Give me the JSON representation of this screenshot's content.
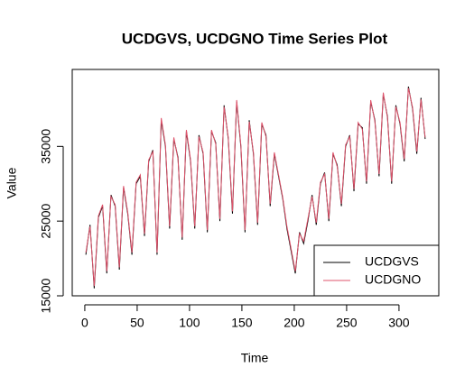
{
  "chart_data": {
    "type": "line",
    "title": "UCDGVS, UCDGNO Time Series Plot",
    "x_label": "Time",
    "y_label": "Value",
    "x": [
      1,
      5,
      9,
      13,
      17,
      21,
      25,
      29,
      33,
      37,
      41,
      45,
      49,
      53,
      57,
      61,
      65,
      69,
      73,
      77,
      81,
      85,
      89,
      93,
      97,
      101,
      105,
      109,
      113,
      117,
      121,
      125,
      129,
      133,
      137,
      141,
      145,
      149,
      153,
      157,
      161,
      165,
      169,
      173,
      177,
      181,
      185,
      189,
      193,
      197,
      201,
      205,
      209,
      213,
      217,
      221,
      225,
      229,
      233,
      237,
      241,
      245,
      249,
      253,
      257,
      261,
      265,
      269,
      273,
      277,
      281,
      285,
      289,
      293,
      297,
      301,
      305,
      309,
      313,
      317,
      321,
      325
    ],
    "series": [
      {
        "name": "UCDGVS",
        "color": "#000000",
        "values": [
          20500,
          24500,
          16000,
          25500,
          27000,
          18000,
          28500,
          27000,
          18500,
          29500,
          26000,
          20500,
          30000,
          31000,
          23000,
          33000,
          34500,
          20500,
          38500,
          35000,
          24000,
          36000,
          33500,
          22500,
          37000,
          33000,
          24000,
          36500,
          34000,
          23500,
          37000,
          35500,
          25000,
          40500,
          36000,
          26000,
          41000,
          35000,
          23500,
          38500,
          34000,
          24500,
          38000,
          36500,
          27000,
          34000,
          31000,
          28000,
          24000,
          21000,
          18000,
          23500,
          22000,
          25000,
          28500,
          24500,
          30000,
          31500,
          25000,
          34000,
          32500,
          27000,
          35000,
          36500,
          29000,
          38000,
          37500,
          30000,
          41000,
          38500,
          31000,
          42000,
          39000,
          30000,
          40500,
          38000,
          33000,
          43000,
          40000,
          34000,
          41500,
          36000
        ]
      },
      {
        "name": "UCDGNO",
        "color": "#DF536B",
        "values": [
          20800,
          24300,
          16300,
          25700,
          27200,
          18300,
          28300,
          27200,
          18800,
          29700,
          26200,
          20800,
          30200,
          31200,
          23300,
          33200,
          34300,
          20800,
          38800,
          35200,
          24300,
          36200,
          33300,
          22800,
          37200,
          33200,
          24300,
          36300,
          34200,
          23800,
          37200,
          35300,
          25300,
          40300,
          36200,
          26300,
          41200,
          35200,
          23800,
          38300,
          34200,
          24800,
          38200,
          36300,
          27300,
          34200,
          31200,
          28200,
          24300,
          21300,
          18300,
          23300,
          22300,
          25300,
          28300,
          24800,
          30200,
          31300,
          25300,
          34200,
          32300,
          27300,
          35200,
          36300,
          29300,
          38200,
          37300,
          30300,
          41200,
          38300,
          31300,
          42200,
          38800,
          30300,
          40300,
          38200,
          33300,
          42800,
          40200,
          34300,
          41300,
          36200
        ]
      }
    ],
    "xlim": [
      -12,
      338
    ],
    "xticks": [
      0,
      50,
      100,
      150,
      200,
      250,
      300
    ],
    "ylim": [
      15000,
      45300
    ],
    "yticks": [
      15000,
      25000,
      35000
    ],
    "legend": "bottom-right"
  }
}
